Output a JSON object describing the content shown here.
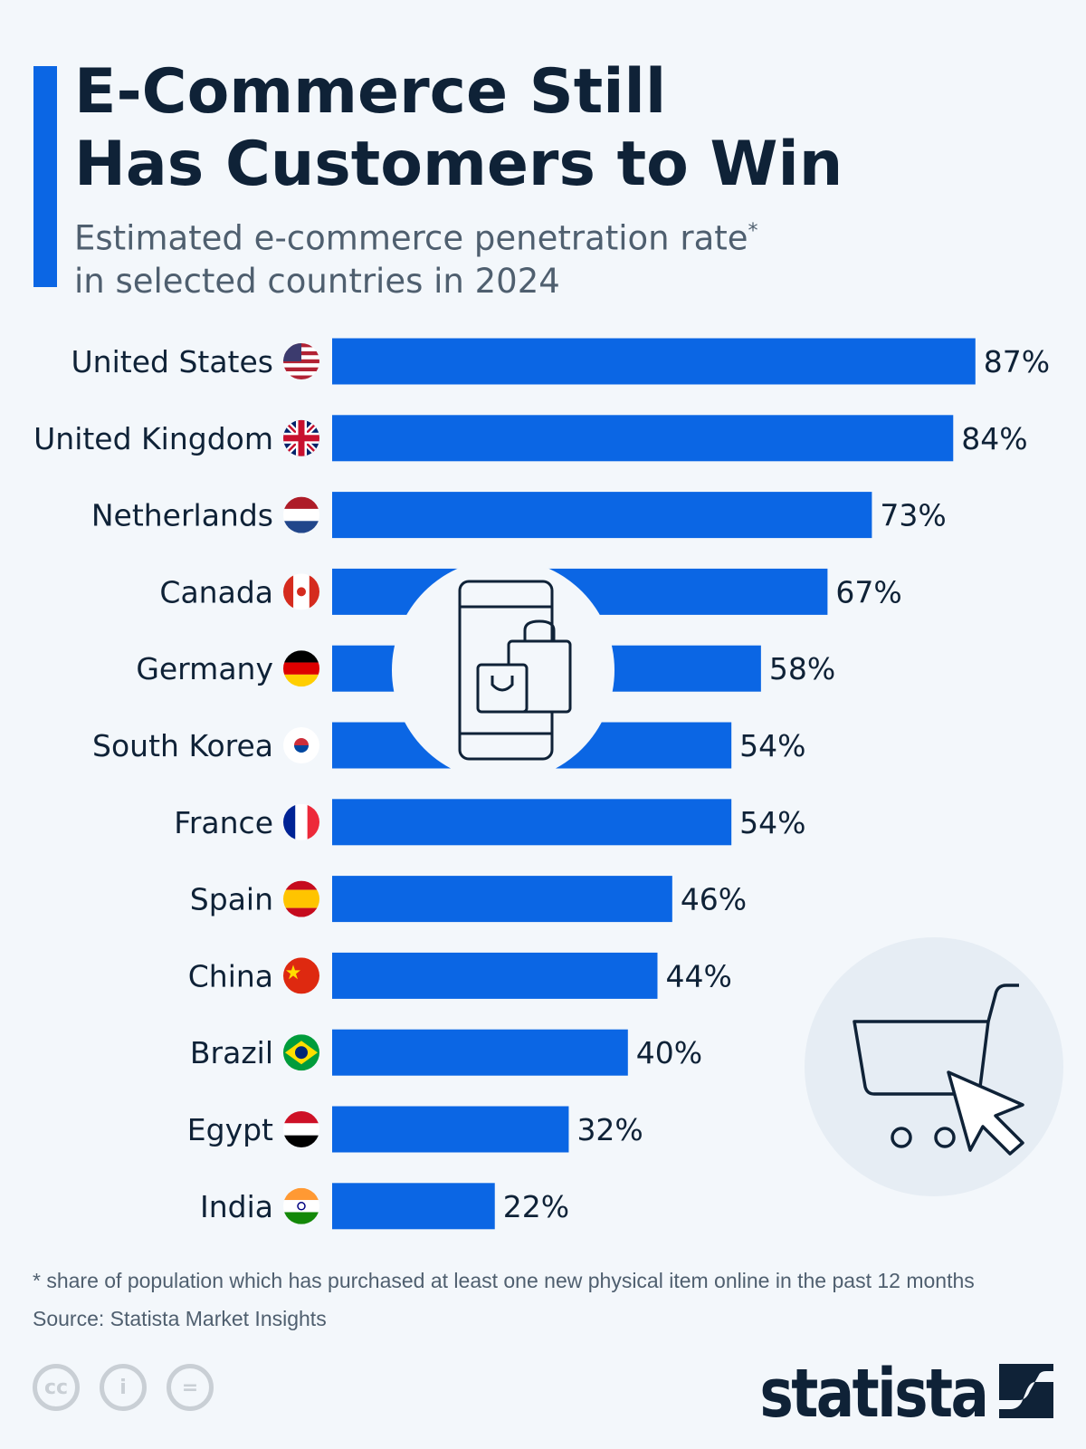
{
  "title_line1": "E-Commerce Still",
  "title_line2": "Has Customers to Win",
  "subtitle_line1": "Estimated e-commerce penetration rate",
  "subtitle_asterisk": "*",
  "subtitle_line2": "in selected countries in 2024",
  "footnote": "* share of population which has purchased at least one new physical item online in the past 12 months",
  "source": "Source: Statista Market Insights",
  "logo": "statista",
  "license_icons": [
    "cc-icon",
    "by-icon",
    "nd-icon"
  ],
  "colors": {
    "bar": "#0b66e4",
    "text": "#0f2237",
    "background": "#f3f7fb"
  },
  "chart_data": {
    "type": "bar",
    "orientation": "horizontal",
    "categories": [
      "United States",
      "United Kingdom",
      "Netherlands",
      "Canada",
      "Germany",
      "South Korea",
      "France",
      "Spain",
      "China",
      "Brazil",
      "Egypt",
      "India"
    ],
    "values": [
      87,
      84,
      73,
      67,
      58,
      54,
      54,
      46,
      44,
      40,
      32,
      22
    ],
    "value_suffix": "%",
    "labels": [
      "87%",
      "84%",
      "73%",
      "67%",
      "58%",
      "54%",
      "54%",
      "46%",
      "44%",
      "40%",
      "32%",
      "22%"
    ],
    "flags": [
      "us-flag-icon",
      "uk-flag-icon",
      "netherlands-flag-icon",
      "canada-flag-icon",
      "germany-flag-icon",
      "south-korea-flag-icon",
      "france-flag-icon",
      "spain-flag-icon",
      "china-flag-icon",
      "brazil-flag-icon",
      "egypt-flag-icon",
      "india-flag-icon"
    ],
    "grid": false,
    "legend": "none"
  }
}
